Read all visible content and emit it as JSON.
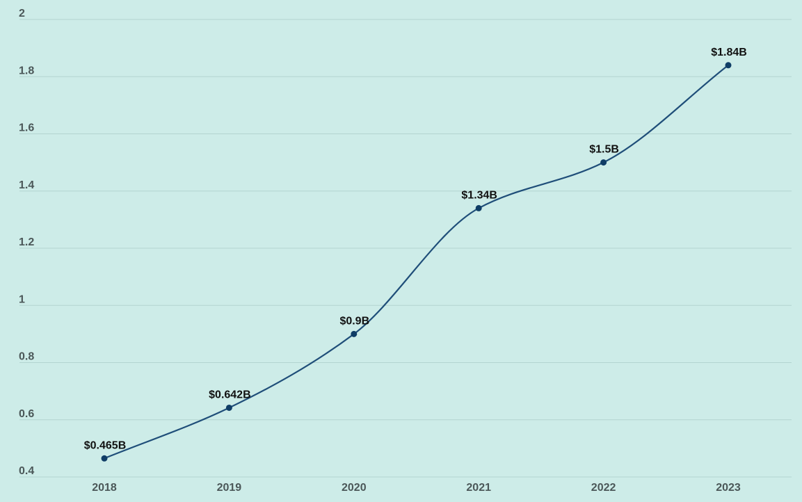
{
  "chart_data": {
    "type": "line",
    "title": "",
    "xlabel": "",
    "ylabel": "",
    "categories": [
      "2018",
      "2019",
      "2020",
      "2021",
      "2022",
      "2023"
    ],
    "values": [
      0.465,
      0.642,
      0.9,
      1.34,
      1.5,
      1.84
    ],
    "data_labels": [
      "$0.465B",
      "$0.642B",
      "$0.9B",
      "$1.34B",
      "$1.5B",
      "$1.84B"
    ],
    "ylim": [
      0.4,
      2
    ],
    "yticks": [
      {
        "value": 0.4,
        "label": "0.4"
      },
      {
        "value": 0.6,
        "label": "0.6"
      },
      {
        "value": 0.8,
        "label": "0.8"
      },
      {
        "value": 1.0,
        "label": "1"
      },
      {
        "value": 1.2,
        "label": "1.2"
      },
      {
        "value": 1.4,
        "label": "1.4"
      },
      {
        "value": 1.6,
        "label": "1.6"
      },
      {
        "value": 1.8,
        "label": "1.8"
      },
      {
        "value": 2.0,
        "label": "2"
      }
    ],
    "grid": true,
    "legend": "none",
    "smooth": true,
    "colors": {
      "line": "#1f4e79",
      "point": "#0f3d66",
      "background": "#cdece8",
      "grid": "#b3d4d0"
    }
  }
}
